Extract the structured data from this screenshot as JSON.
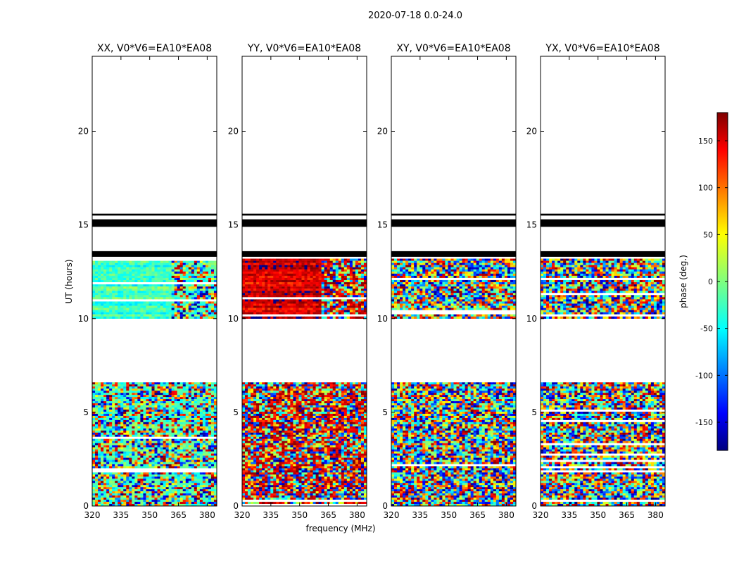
{
  "figure": {
    "suptitle": "2020-07-18 0.0-24.0",
    "xlabel": "frequency (MHz)",
    "ylabel": "UT (hours)"
  },
  "chart_data": {
    "type": "heatmap",
    "x_range": [
      320,
      385
    ],
    "y_range": [
      0,
      24
    ],
    "x_ticks": [
      320,
      335,
      350,
      365,
      380
    ],
    "y_ticks": [
      0,
      5,
      10,
      15,
      20
    ],
    "grid": false,
    "colorscale": "jet",
    "panels": [
      {
        "title": "XX, V0*V6=EA10*EA08",
        "dominant_phase_deg": -20,
        "noise": "low"
      },
      {
        "title": "YY, V0*V6=EA10*EA08",
        "dominant_phase_deg": 150,
        "noise": "low"
      },
      {
        "title": "XY, V0*V6=EA10*EA08",
        "dominant_phase_deg": null,
        "noise": "high"
      },
      {
        "title": "YX, V0*V6=EA10*EA08",
        "dominant_phase_deg": null,
        "noise": "high"
      }
    ],
    "black_bands_hours": [
      [
        14.9,
        15.3
      ],
      [
        15.5,
        15.6
      ],
      [
        13.3,
        13.6
      ]
    ],
    "data_blocks_hours": [
      [
        0,
        6.6
      ],
      [
        10.0,
        13.2
      ]
    ],
    "colorbar": {
      "label": "phase (deg.)",
      "range": [
        -180,
        180
      ],
      "ticks": [
        -150,
        -100,
        -50,
        0,
        50,
        100,
        150
      ]
    }
  }
}
